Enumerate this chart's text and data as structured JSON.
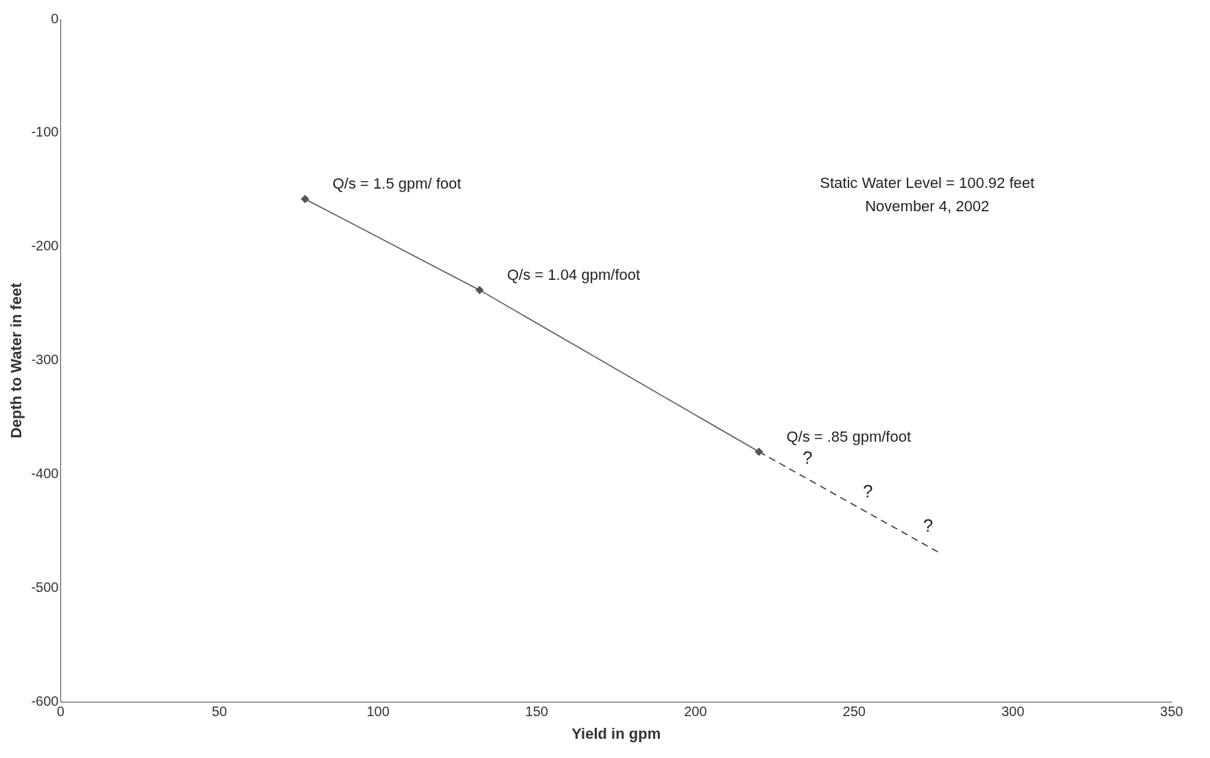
{
  "chart_data": {
    "type": "line",
    "xlabel": "Yield in gpm",
    "ylabel": "Depth to Water in feet",
    "series": [
      {
        "color": "#555555",
        "x": [
          77,
          132,
          220
        ],
        "values": [
          -158,
          -238,
          -380
        ],
        "marker": "diamond",
        "line_style": "solid"
      },
      {
        "color": "#333333",
        "x": [
          220,
          277
        ],
        "values": [
          -380,
          -469
        ],
        "marker": "none",
        "line_style": "dashed"
      }
    ],
    "xlim": [
      0,
      350
    ],
    "xticks": [
      0,
      50,
      100,
      150,
      200,
      250,
      300,
      350
    ],
    "ylim": [
      -600,
      0
    ],
    "yticks": [
      -600,
      -500,
      -400,
      -300,
      -200,
      -100,
      0
    ],
    "grid": false,
    "legend": false,
    "annotations": [
      {
        "text": "Q/s = 1.5 gpm/ foot",
        "x": 77,
        "y": -158
      },
      {
        "text": "Q/s = 1.04 gpm/foot",
        "x": 132,
        "y": -238
      },
      {
        "text": "Q/s = .85 gpm/foot",
        "x": 220,
        "y": -380
      },
      "?",
      "?",
      "?",
      "Static Water Level = 100.92 feet",
      "November 4, 2002"
    ]
  }
}
